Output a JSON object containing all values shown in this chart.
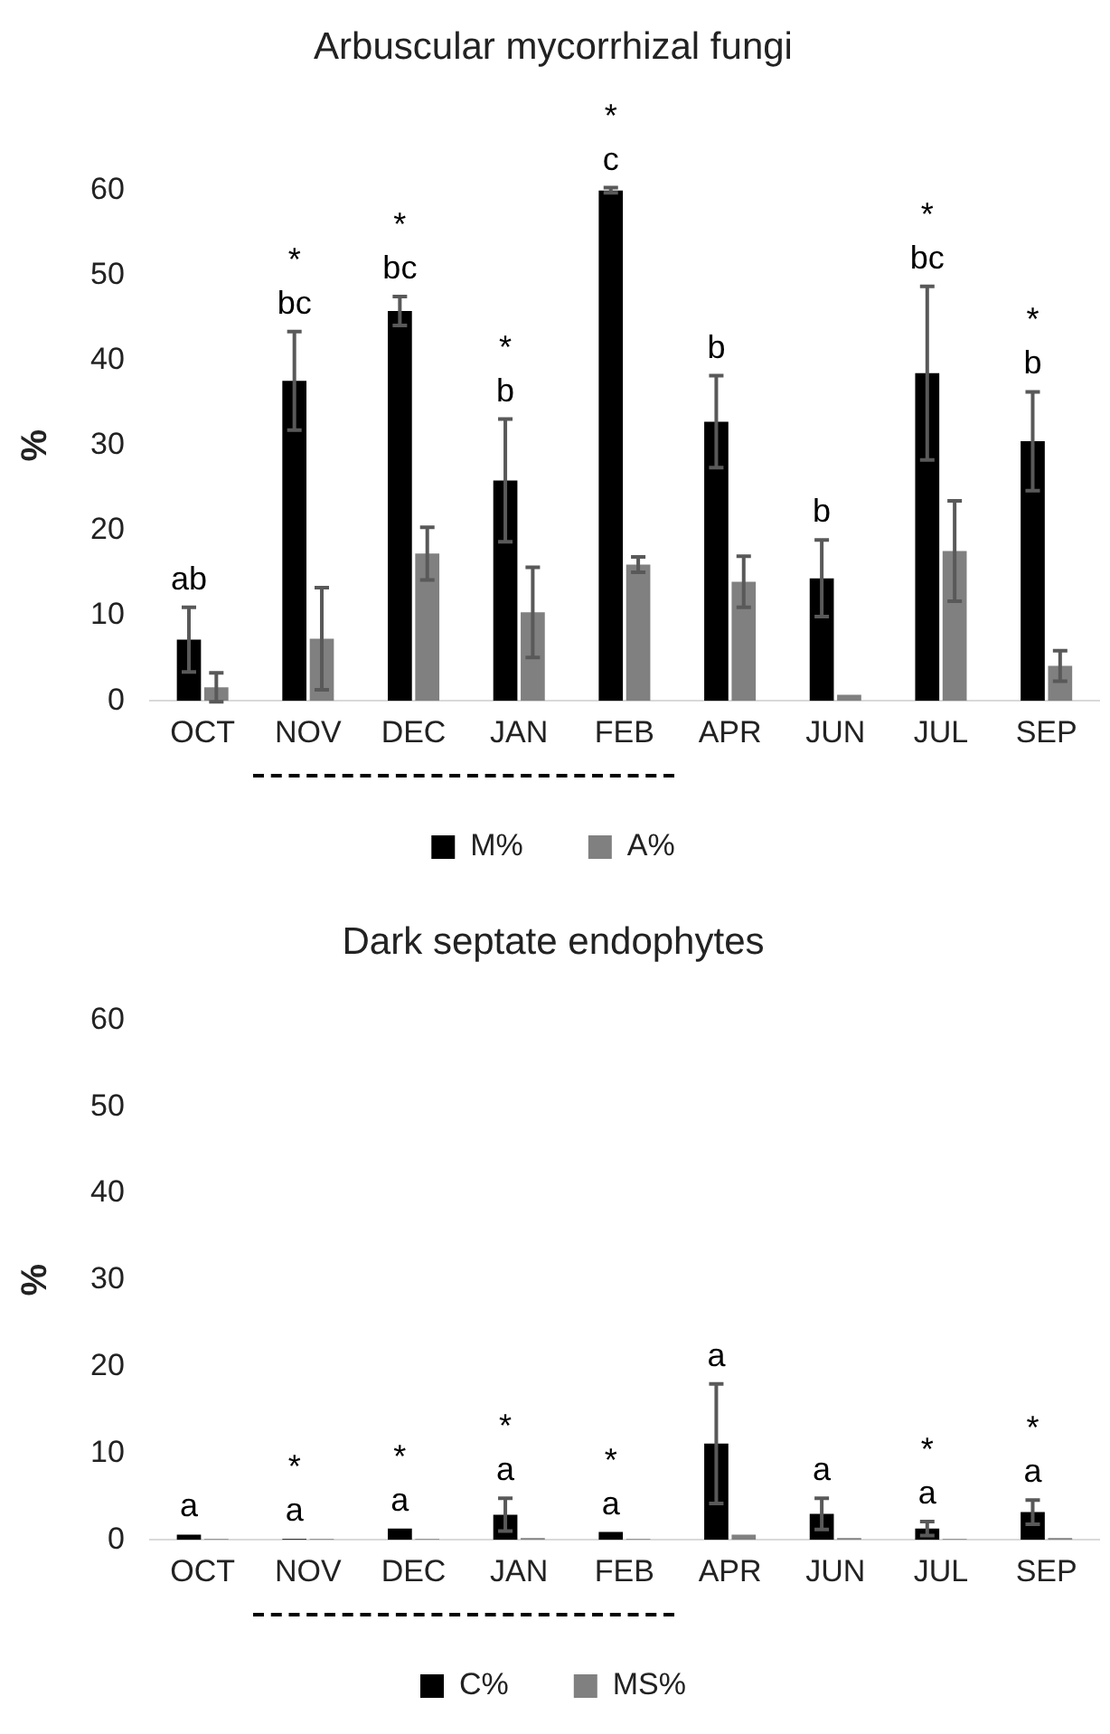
{
  "chart_data": [
    {
      "type": "bar",
      "title": "Arbuscular mycorrhizal fungi",
      "ylabel": "%",
      "categories": [
        "OCT",
        "NOV",
        "DEC",
        "JAN",
        "FEB",
        "APR",
        "JUN",
        "JUL",
        "SEP"
      ],
      "series": [
        {
          "name": "M%",
          "color": "#000000",
          "values": [
            7.2,
            37.6,
            45.8,
            25.9,
            60,
            32.8,
            14.4,
            38.5,
            30.5
          ],
          "errors": [
            3.8,
            5.8,
            1.7,
            7.2,
            0.3,
            5.4,
            4.5,
            10.2,
            5.8
          ]
        },
        {
          "name": "A%",
          "color": "#808080",
          "values": [
            1.6,
            7.3,
            17.3,
            10.4,
            16.0,
            14.0,
            0.7,
            17.6,
            4.1
          ],
          "errors": [
            1.7,
            6.0,
            3.1,
            5.3,
            0.9,
            3.0,
            null,
            5.9,
            1.8
          ]
        }
      ],
      "ylim": [
        0,
        60
      ],
      "yticks": [
        0,
        10,
        20,
        30,
        40,
        50,
        60
      ],
      "grid": false,
      "legend": "bottom",
      "annotations": [
        {
          "text": "ab",
          "x": "OCT",
          "y": 7.2
        },
        {
          "text": "*\nbc",
          "x": "NOV",
          "y": 37.6
        },
        {
          "text": "*\nbc",
          "x": "DEC",
          "y": 45.8
        },
        {
          "text": "*\nb",
          "x": "JAN",
          "y": 25.9
        },
        {
          "text": "*\nc",
          "x": "FEB",
          "y": 60
        },
        {
          "text": "b",
          "x": "APR",
          "y": 32.8
        },
        {
          "text": "b",
          "x": "JUN",
          "y": 14.4
        },
        {
          "text": "*\nbc",
          "x": "JUL",
          "y": 38.5
        },
        {
          "text": "*\nb",
          "x": "SEP",
          "y": 30.5
        }
      ]
    },
    {
      "type": "bar",
      "title": "Dark septate endophytes",
      "ylabel": "%",
      "categories": [
        "OCT",
        "NOV",
        "DEC",
        "JAN",
        "FEB",
        "APR",
        "JUN",
        "JUL",
        "SEP"
      ],
      "series": [
        {
          "name": "C%",
          "color": "#000000",
          "values": [
            0.6,
            0.1,
            1.3,
            2.9,
            0.9,
            11.1,
            3.0,
            1.3,
            3.2
          ],
          "errors": [
            null,
            null,
            null,
            1.9,
            null,
            6.9,
            1.8,
            0.8,
            1.4
          ]
        },
        {
          "name": "MS%",
          "color": "#808080",
          "values": [
            0.1,
            0.1,
            0.1,
            0.2,
            0.1,
            0.6,
            0.2,
            0.1,
            0.2
          ],
          "errors": [
            null,
            null,
            null,
            null,
            null,
            null,
            null,
            null,
            null
          ]
        }
      ],
      "ylim": [
        0,
        60
      ],
      "yticks": [
        0,
        10,
        20,
        30,
        40,
        50,
        60
      ],
      "grid": false,
      "legend": "bottom",
      "annotations": [
        {
          "text": "a",
          "x": "OCT",
          "y": 0.6
        },
        {
          "text": "*\na",
          "x": "NOV",
          "y": 0.1
        },
        {
          "text": "*\na",
          "x": "DEC",
          "y": 1.3
        },
        {
          "text": "*\na",
          "x": "JAN",
          "y": 2.9
        },
        {
          "text": "*\na",
          "x": "FEB",
          "y": 0.9
        },
        {
          "text": "a",
          "x": "APR",
          "y": 11.1
        },
        {
          "text": "a",
          "x": "JUN",
          "y": 3.0
        },
        {
          "text": "*\na",
          "x": "JUL",
          "y": 1.3
        },
        {
          "text": "*\na",
          "x": "SEP",
          "y": 3.2
        }
      ]
    }
  ]
}
